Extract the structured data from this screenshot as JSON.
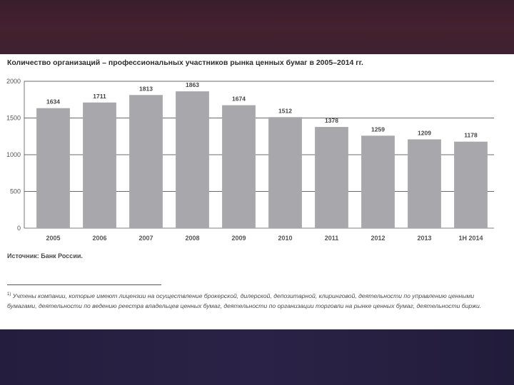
{
  "chart_data": {
    "type": "bar",
    "title": "Количество организаций – профессиональных участников рынка ценных бумаг в 2005–2014 гг.",
    "categories": [
      "2005",
      "2006",
      "2007",
      "2008",
      "2009",
      "2010",
      "2011",
      "2012",
      "2013",
      "1H 2014"
    ],
    "values": [
      1634,
      1711,
      1813,
      1863,
      1674,
      1512,
      1378,
      1259,
      1209,
      1178
    ],
    "ylim": [
      0,
      2000
    ],
    "yticks": [
      0,
      500,
      1000,
      1500,
      2000
    ],
    "grid": true,
    "bar_color": "#a8a8ac"
  },
  "source": "Источник: Банк России.",
  "footnote": {
    "mark": "1)",
    "text": "Учтены компании, которые имеют лицензии на осуществление брокерской, дилерской, депозитарной, клиринговой, деятельности по управлению ценными бумагами, деятельности по ведению реестра владельцев ценных бумаг, деятельности по организации торговли на рынке ценных бумаг, деятельности биржи."
  },
  "colors": {
    "top_band": "#3e1f2e",
    "bottom_band": "#261f40"
  }
}
